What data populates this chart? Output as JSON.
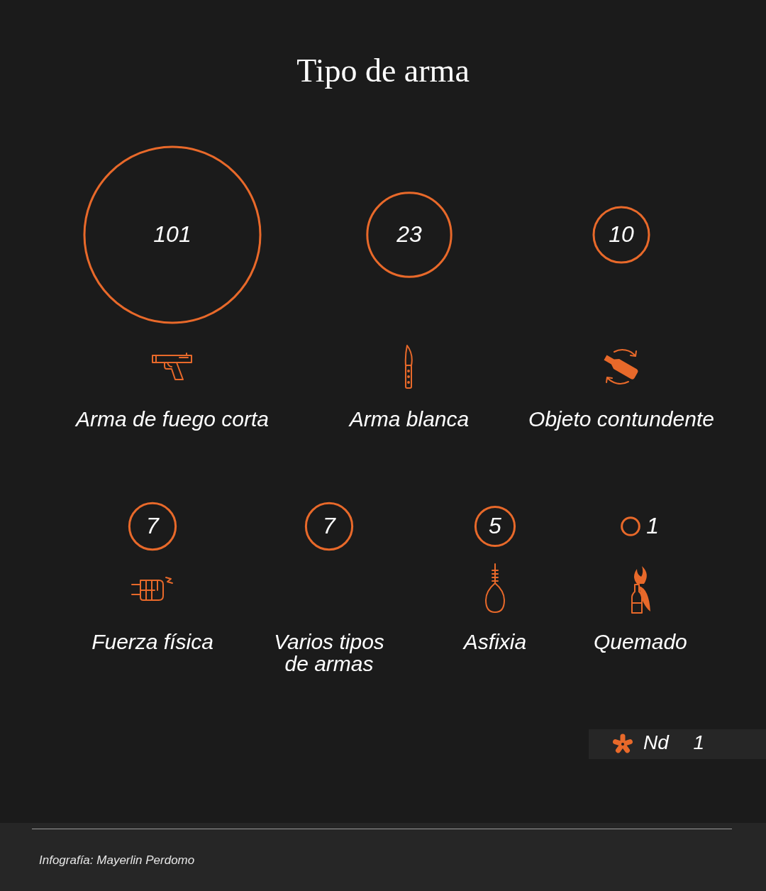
{
  "chart_data": {
    "type": "other",
    "title": "Tipo de arma",
    "categories": [
      "Arma de fuego corta",
      "Arma blanca",
      "Objeto contundente",
      "Fuerza física",
      "Varios tipos de armas",
      "Asfixia",
      "Quemado"
    ],
    "values": [
      101,
      23,
      10,
      7,
      7,
      5,
      1
    ],
    "color": "#e8692a",
    "data_labels": true,
    "annotations": [
      "Nd 1",
      "Infografía: Mayerlin Perdomo"
    ]
  }
}
